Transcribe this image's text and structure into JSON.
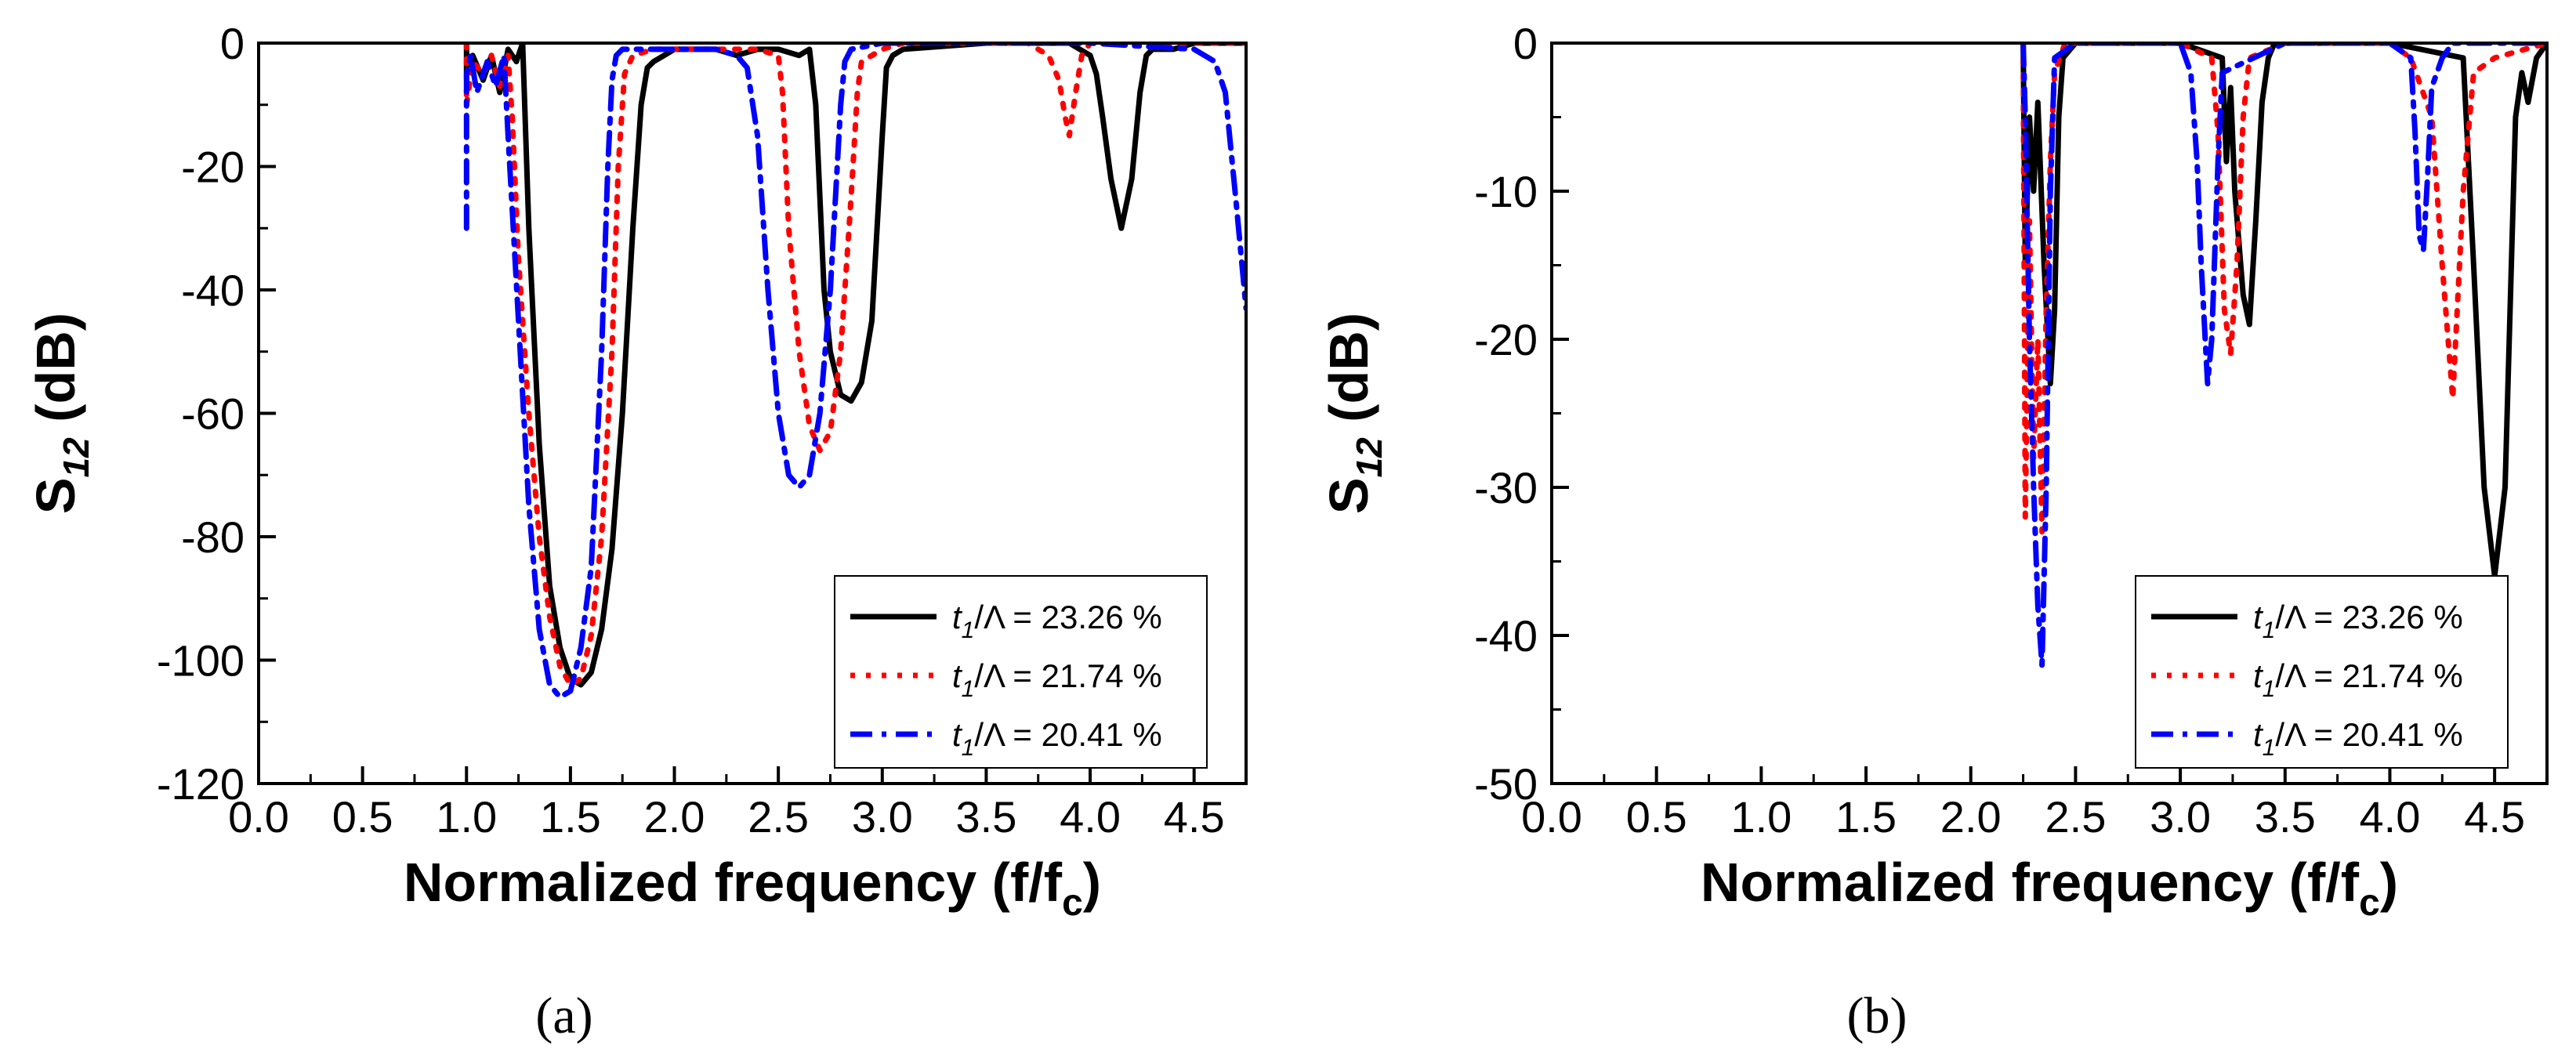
{
  "chart_data": [
    {
      "id": "a",
      "type": "line",
      "caption": "(a)",
      "xlabel_main": "Normalized frequency (f/f",
      "xlabel_sub": "c",
      "xlabel_close": ")",
      "ylabel_main": "S",
      "ylabel_sub": "12",
      "ylabel_unit": " (dB)",
      "xlim": [
        0.0,
        4.75
      ],
      "ylim": [
        -120,
        0
      ],
      "xticks": [
        "0.0",
        "0.5",
        "1.0",
        "1.5",
        "2.0",
        "2.5",
        "3.0",
        "3.5",
        "4.0",
        "4.5"
      ],
      "xtick_values": [
        0,
        0.5,
        1,
        1.5,
        2,
        2.5,
        3,
        3.5,
        4,
        4.5
      ],
      "yticks": [
        "0",
        "-20",
        "-40",
        "-60",
        "-80",
        "-100",
        "-120"
      ],
      "ytick_values": [
        0,
        -20,
        -40,
        -60,
        -80,
        -100,
        -120
      ],
      "legend_position": "bottom-right",
      "series": [
        {
          "name_italic": "t",
          "name_sub": "1",
          "name_rest": "/Λ = 23.26 %",
          "color": "#000000",
          "style": "solid",
          "x": [
            1.0,
            1.0,
            1.03,
            1.08,
            1.12,
            1.16,
            1.2,
            1.24,
            1.27,
            1.3,
            1.35,
            1.4,
            1.45,
            1.5,
            1.55,
            1.6,
            1.65,
            1.7,
            1.75,
            1.8,
            1.84,
            1.87,
            1.9,
            1.95,
            2.0,
            2.1,
            2.2,
            2.3,
            2.4,
            2.5,
            2.6,
            2.65,
            2.68,
            2.7,
            2.72,
            2.75,
            2.8,
            2.85,
            2.9,
            2.95,
            3.0,
            3.02,
            3.05,
            3.1,
            3.5,
            3.9,
            4.0,
            4.03,
            4.06,
            4.1,
            4.15,
            4.2,
            4.24,
            4.27,
            4.3,
            4.4,
            4.5,
            4.6,
            4.75
          ],
          "y": [
            0,
            -5,
            -2,
            -6,
            -2,
            -8,
            -1,
            -3,
            0,
            -30,
            -65,
            -88,
            -98,
            -103,
            -104,
            -102,
            -95,
            -82,
            -60,
            -30,
            -10,
            -4,
            -3,
            -2,
            -1,
            -1,
            -1,
            -2,
            -1,
            -1,
            -2,
            -1,
            -10,
            -25,
            -40,
            -50,
            -57,
            -58,
            -55,
            -45,
            -15,
            -4,
            -2,
            -1,
            0,
            0,
            -2,
            -5,
            -12,
            -22,
            -30,
            -22,
            -8,
            -2,
            -1,
            -1,
            0,
            0,
            0
          ]
        },
        {
          "name_italic": "t",
          "name_sub": "1",
          "name_rest": "/Λ = 21.74 %",
          "color": "#ff0000",
          "style": "dotted",
          "x": [
            1.0,
            1.0,
            1.03,
            1.08,
            1.12,
            1.16,
            1.2,
            1.22,
            1.25,
            1.3,
            1.35,
            1.4,
            1.45,
            1.5,
            1.55,
            1.6,
            1.65,
            1.7,
            1.73,
            1.76,
            1.8,
            1.9,
            2.0,
            2.2,
            2.4,
            2.5,
            2.52,
            2.55,
            2.6,
            2.65,
            2.7,
            2.75,
            2.8,
            2.85,
            2.88,
            2.9,
            3.0,
            3.1,
            3.5,
            3.7,
            3.8,
            3.85,
            3.88,
            3.9,
            3.93,
            3.96,
            4.0,
            4.3,
            4.75
          ],
          "y": [
            0,
            -10,
            -3,
            -5,
            -2,
            -7,
            -2,
            -12,
            -35,
            -60,
            -80,
            -93,
            -101,
            -104,
            -103,
            -96,
            -80,
            -50,
            -20,
            -5,
            -2,
            -1,
            -1,
            -1,
            -1,
            -2,
            -8,
            -30,
            -50,
            -62,
            -66,
            -63,
            -50,
            -25,
            -8,
            -3,
            -1,
            0,
            0,
            0,
            -2,
            -6,
            -12,
            -15,
            -8,
            -2,
            0,
            0,
            0
          ]
        },
        {
          "name_italic": "t",
          "name_sub": "1",
          "name_rest": "/Λ = 20.41 %",
          "color": "#0000ff",
          "style": "dashdot",
          "x": [
            1.0,
            1.0,
            1.02,
            1.05,
            1.1,
            1.14,
            1.18,
            1.2,
            1.25,
            1.3,
            1.35,
            1.4,
            1.45,
            1.5,
            1.55,
            1.6,
            1.65,
            1.68,
            1.7,
            1.72,
            1.75,
            1.8,
            2.0,
            2.2,
            2.3,
            2.35,
            2.4,
            2.45,
            2.5,
            2.55,
            2.6,
            2.65,
            2.7,
            2.75,
            2.8,
            2.82,
            2.85,
            3.0,
            3.5,
            4.0,
            4.5,
            4.6,
            4.65,
            4.7,
            4.75
          ],
          "y": [
            -30,
            -5,
            -2,
            -8,
            -3,
            -7,
            -2,
            -15,
            -45,
            -75,
            -95,
            -104,
            -106,
            -105,
            -98,
            -85,
            -50,
            -20,
            -6,
            -2,
            -1,
            -1,
            -1,
            -1,
            -2,
            -4,
            -15,
            -40,
            -60,
            -70,
            -72,
            -70,
            -60,
            -40,
            -10,
            -3,
            -1,
            0,
            0,
            0,
            -1,
            -3,
            -8,
            -25,
            -43
          ]
        }
      ]
    },
    {
      "id": "b",
      "type": "line",
      "caption": "(b)",
      "xlabel_main": "Normalized frequency (f/f",
      "xlabel_sub": "c",
      "xlabel_close": ")",
      "ylabel_main": "S",
      "ylabel_sub": "12",
      "ylabel_unit": " (dB)",
      "xlim": [
        0.0,
        4.75
      ],
      "ylim": [
        -50,
        0
      ],
      "xticks": [
        "0.0",
        "0.5",
        "1.0",
        "1.5",
        "2.0",
        "2.5",
        "3.0",
        "3.5",
        "4.0",
        "4.5"
      ],
      "xtick_values": [
        0,
        0.5,
        1,
        1.5,
        2,
        2.5,
        3,
        3.5,
        4,
        4.5
      ],
      "yticks": [
        "0",
        "-10",
        "-20",
        "-30",
        "-40",
        "-50"
      ],
      "ytick_values": [
        0,
        -10,
        -20,
        -30,
        -40,
        -50
      ],
      "legend_position": "bottom-right",
      "series": [
        {
          "name_italic": "t",
          "name_sub": "1",
          "name_rest": "/Λ = 23.26 %",
          "color": "#000000",
          "style": "solid",
          "x": [
            2.25,
            2.26,
            2.28,
            2.3,
            2.32,
            2.35,
            2.38,
            2.4,
            2.42,
            2.44,
            2.5,
            3.0,
            3.2,
            3.22,
            3.24,
            3.26,
            3.3,
            3.33,
            3.36,
            3.39,
            3.42,
            3.45,
            4.0,
            4.35,
            4.4,
            4.45,
            4.5,
            4.55,
            4.58,
            4.6,
            4.63,
            4.66,
            4.7,
            4.75
          ],
          "y": [
            0,
            -15,
            -5,
            -10,
            -4,
            -15,
            -23,
            -18,
            -5,
            -1,
            0,
            0,
            -1,
            -8,
            -3,
            -10,
            -17,
            -19,
            -12,
            -4,
            -1,
            0,
            0,
            -1,
            -15,
            -30,
            -36,
            -30,
            -15,
            -5,
            -2,
            -4,
            -1,
            0
          ]
        },
        {
          "name_italic": "t",
          "name_sub": "1",
          "name_rest": "/Λ = 21.74 %",
          "color": "#ff0000",
          "style": "dotted",
          "x": [
            2.25,
            2.26,
            2.28,
            2.3,
            2.32,
            2.34,
            2.36,
            2.38,
            2.4,
            2.45,
            3.0,
            3.15,
            3.18,
            3.21,
            3.24,
            3.27,
            3.3,
            3.33,
            3.5,
            4.0,
            4.1,
            4.2,
            4.25,
            4.3,
            4.35,
            4.4,
            4.5,
            4.75
          ],
          "y": [
            0,
            -32,
            -12,
            -28,
            -20,
            -33,
            -18,
            -8,
            -2,
            0,
            0,
            -1,
            -6,
            -18,
            -21,
            -15,
            -5,
            -1,
            0,
            0,
            -1,
            -5,
            -15,
            -24,
            -10,
            -2,
            -1,
            0
          ],
          "markers": true
        },
        {
          "name_italic": "t",
          "name_sub": "1",
          "name_rest": "/Λ = 20.41 %",
          "color": "#0000ff",
          "style": "dashdot",
          "x": [
            2.25,
            2.26,
            2.28,
            2.3,
            2.32,
            2.34,
            2.36,
            2.38,
            2.4,
            2.5,
            3.0,
            3.05,
            3.08,
            3.1,
            3.13,
            3.15,
            3.18,
            3.2,
            3.5,
            4.0,
            4.1,
            4.12,
            4.14,
            4.16,
            4.18,
            4.2,
            4.25,
            4.3,
            4.75
          ],
          "y": [
            0,
            -5,
            -20,
            -30,
            -38,
            -42,
            -30,
            -10,
            -1,
            0,
            0,
            -2,
            -8,
            -15,
            -23,
            -20,
            -8,
            -2,
            0,
            0,
            -1,
            -6,
            -13,
            -14,
            -9,
            -3,
            -1,
            0,
            0
          ]
        }
      ]
    }
  ]
}
